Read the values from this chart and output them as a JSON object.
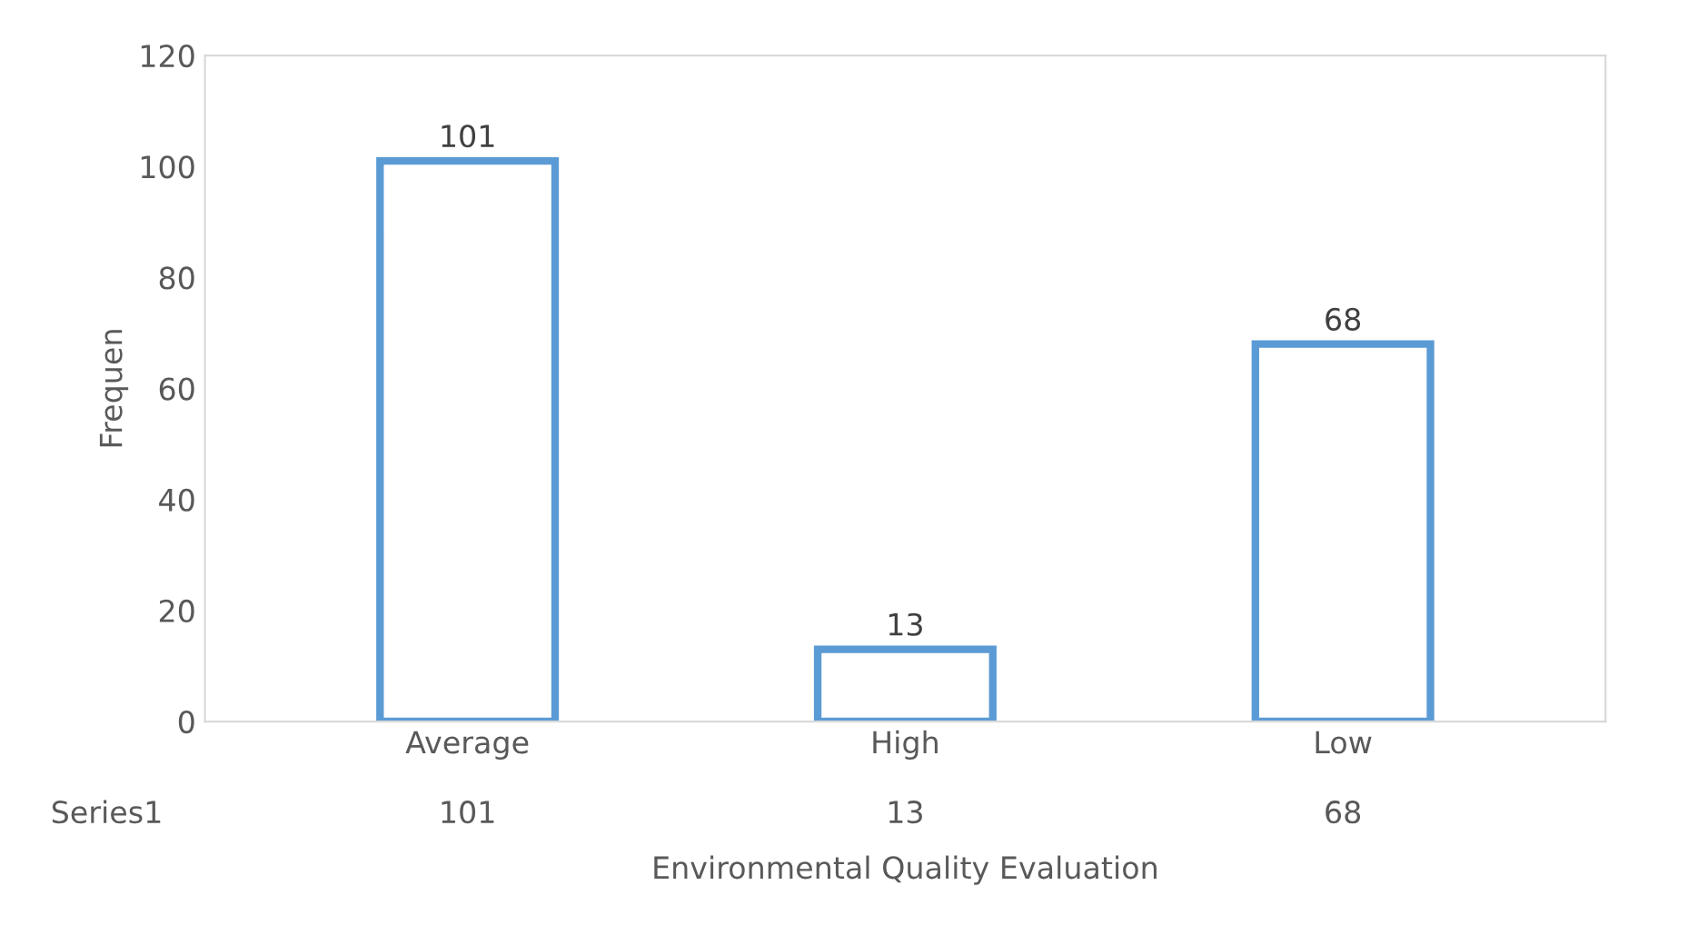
{
  "chart_data": {
    "type": "bar",
    "xlabel": "Environmental Quality Evaluation",
    "ylabel": "Frequen",
    "categories": [
      "Average",
      "High",
      "Low"
    ],
    "series": [
      {
        "name": "Series1",
        "color": "#5b9bd5",
        "values": [
          101,
          13,
          68
        ],
        "value_labels": [
          "101",
          "13",
          "68"
        ]
      }
    ],
    "annotations": [
      "101",
      "13",
      "68"
    ],
    "ylim": [
      0,
      120
    ],
    "yticks": [
      0,
      20,
      40,
      60,
      80,
      100,
      120
    ],
    "grid": false,
    "legend": false,
    "data_labels": true
  }
}
